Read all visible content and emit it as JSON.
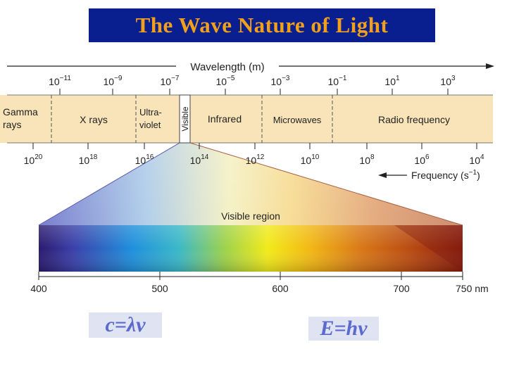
{
  "title": "The Wave Nature of Light",
  "wavelength_axis": {
    "label": "Wavelength (m)",
    "ticks": [
      {
        "base": "10",
        "exp": "−11"
      },
      {
        "base": "10",
        "exp": "−9"
      },
      {
        "base": "10",
        "exp": "−7"
      },
      {
        "base": "10",
        "exp": "−5"
      },
      {
        "base": "10",
        "exp": "−3"
      },
      {
        "base": "10",
        "exp": "−1"
      },
      {
        "base": "10",
        "exp": "1"
      },
      {
        "base": "10",
        "exp": "3"
      }
    ]
  },
  "frequency_axis": {
    "label_main": "Frequency (s",
    "label_exp": "−1",
    "label_end": ")",
    "ticks": [
      {
        "base": "10",
        "exp": "20"
      },
      {
        "base": "10",
        "exp": "18"
      },
      {
        "base": "10",
        "exp": "16"
      },
      {
        "base": "10",
        "exp": "14"
      },
      {
        "base": "10",
        "exp": "12"
      },
      {
        "base": "10",
        "exp": "10"
      },
      {
        "base": "10",
        "exp": "8"
      },
      {
        "base": "10",
        "exp": "6"
      },
      {
        "base": "10",
        "exp": "4"
      }
    ]
  },
  "regions": {
    "gamma_line1": "Gamma",
    "gamma_line2": "rays",
    "xrays": "X rays",
    "uv_line1": "Ultra-",
    "uv_line2": "violet",
    "visible": "Visible",
    "infrared": "Infrared",
    "microwaves": "Microwaves",
    "radio": "Radio frequency"
  },
  "visible_region": {
    "label": "Visible region",
    "ticks": [
      "400",
      "500",
      "600",
      "700",
      "750 nm"
    ]
  },
  "equations": {
    "left": "c=λν",
    "right": "E=hν"
  },
  "colors": {
    "title_bg": "#0a1f8f",
    "title_text": "#f0a01a",
    "band": "#f8e4b8"
  }
}
